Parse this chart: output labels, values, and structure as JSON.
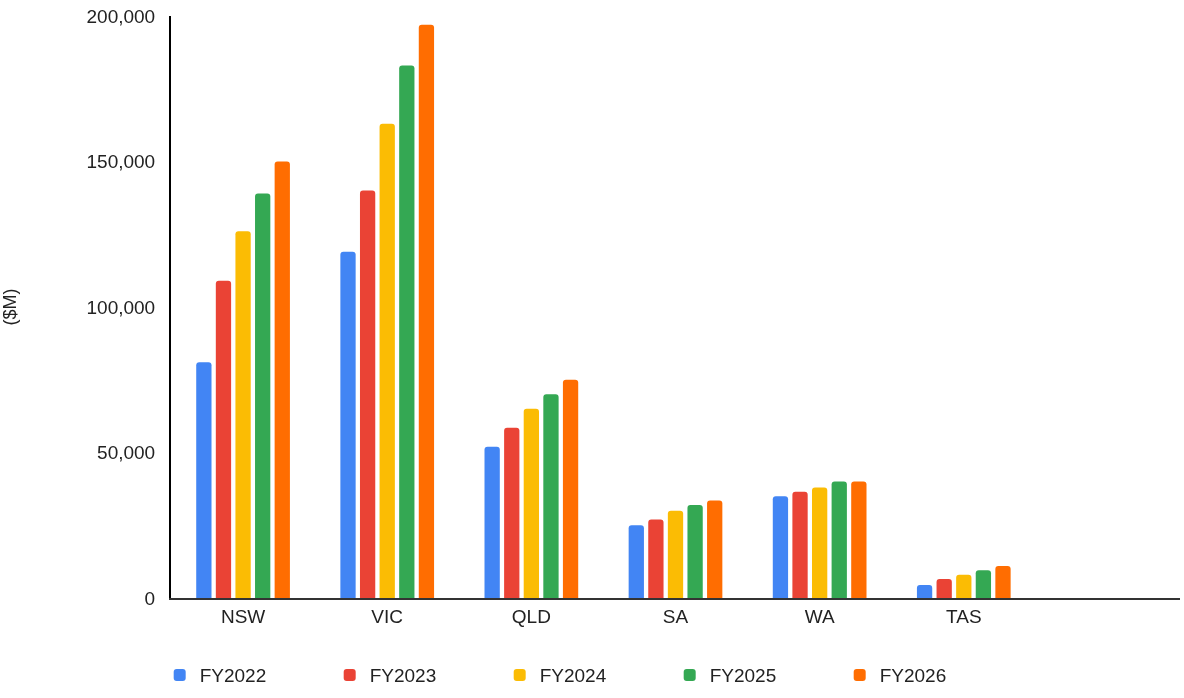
{
  "chart_data": {
    "type": "bar",
    "ylabel": "($M)",
    "categories": [
      "NSW",
      "VIC",
      "QLD",
      "SA",
      "WA",
      "TAS",
      null
    ],
    "series": [
      {
        "name": "FY2022",
        "color": "#4285f4",
        "values": [
          81000,
          119000,
          52000,
          25000,
          35000,
          4500,
          null
        ]
      },
      {
        "name": "FY2023",
        "color": "#ea4335",
        "values": [
          109000,
          140000,
          58500,
          27000,
          36500,
          6500,
          null
        ]
      },
      {
        "name": "FY2024",
        "color": "#fbbc04",
        "values": [
          126000,
          163000,
          65000,
          30000,
          38000,
          8000,
          null
        ]
      },
      {
        "name": "FY2025",
        "color": "#34a853",
        "values": [
          139000,
          183000,
          70000,
          32000,
          40000,
          9500,
          null
        ]
      },
      {
        "name": "FY2026",
        "color": "#ff6d01",
        "values": [
          150000,
          197000,
          75000,
          33500,
          40000,
          11000,
          null
        ]
      }
    ],
    "ylim": [
      0,
      200000
    ],
    "yticks": [
      0,
      {
        "value": 50000,
        "label": "50,000"
      },
      {
        "value": 100000,
        "label": "100,000"
      },
      {
        "value": 150000,
        "label": "150,000"
      },
      {
        "value": 200000,
        "label": "200,000"
      }
    ],
    "grid": false,
    "legend": "bottom"
  }
}
